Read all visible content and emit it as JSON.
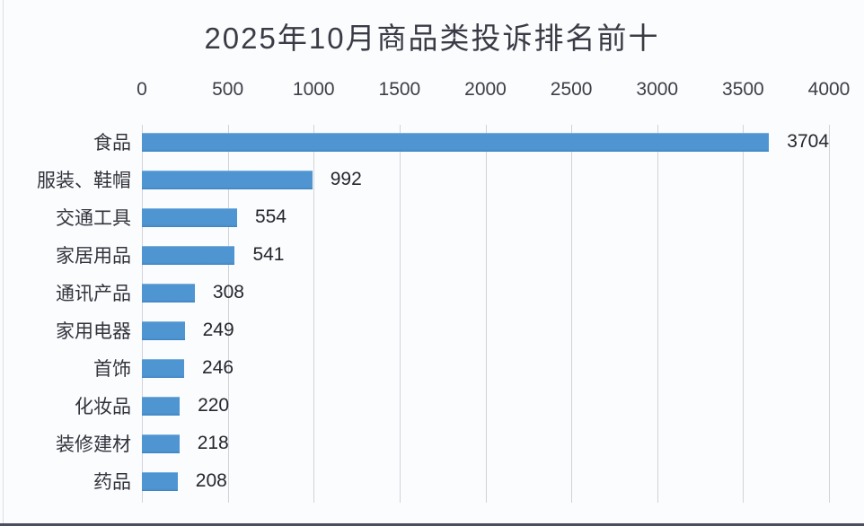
{
  "chart_data": {
    "type": "bar",
    "orientation": "horizontal",
    "title": "2025年10月商品类投诉排名前十",
    "categories": [
      "食品",
      "服装、鞋帽",
      "交通工具",
      "家居用品",
      "通讯产品",
      "家用电器",
      "首饰",
      "化妆品",
      "装修建材",
      "药品"
    ],
    "values": [
      3704,
      992,
      554,
      541,
      308,
      249,
      246,
      220,
      218,
      208
    ],
    "xlabel": "",
    "ylabel": "",
    "xlim": [
      0,
      4000
    ],
    "x_ticks": [
      0,
      500,
      1000,
      1500,
      2000,
      2500,
      3000,
      3500,
      4000
    ],
    "grid": true,
    "legend": false,
    "data_labels": true,
    "bar_color": "#4e95d1",
    "gridline_color": "#d2d3d8",
    "title_color": "#3b3b46",
    "text_color": "#33333c",
    "background_color": "#fbfcfe"
  }
}
